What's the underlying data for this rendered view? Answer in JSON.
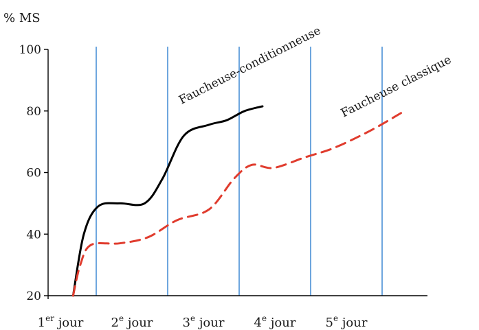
{
  "chart_data": {
    "type": "line",
    "ylabel": "% MS",
    "ylim": [
      20,
      100
    ],
    "yticks": [
      20,
      40,
      60,
      80,
      100
    ],
    "day_dividers": [
      1,
      2,
      3,
      4,
      5
    ],
    "categories": [
      {
        "num": "1",
        "sup": "er",
        "word": "jour"
      },
      {
        "num": "2",
        "sup": "e",
        "word": "jour"
      },
      {
        "num": "3",
        "sup": "e",
        "word": "jour"
      },
      {
        "num": "4",
        "sup": "e",
        "word": "jour"
      },
      {
        "num": "5",
        "sup": "e",
        "word": "jour"
      }
    ],
    "grid": "vertical lines at each day",
    "series": [
      {
        "name": "Faucheuse-conditionneuse",
        "color": "#000000",
        "dash": "solid",
        "points": [
          [
            0.35,
            20
          ],
          [
            0.5,
            40
          ],
          [
            0.7,
            49
          ],
          [
            1.0,
            50
          ],
          [
            1.35,
            50
          ],
          [
            1.6,
            58
          ],
          [
            1.9,
            72
          ],
          [
            2.25,
            75.5
          ],
          [
            2.5,
            77
          ],
          [
            2.75,
            80
          ],
          [
            3.0,
            81.5
          ]
        ]
      },
      {
        "name": "Faucheuse classique",
        "color": "#e03c2e",
        "dash": "dashed",
        "points": [
          [
            0.35,
            20
          ],
          [
            0.45,
            30
          ],
          [
            0.6,
            36.5
          ],
          [
            1.0,
            37
          ],
          [
            1.4,
            39
          ],
          [
            1.8,
            44.5
          ],
          [
            2.25,
            48
          ],
          [
            2.6,
            58
          ],
          [
            2.85,
            62.5
          ],
          [
            3.15,
            61.5
          ],
          [
            3.6,
            65
          ],
          [
            4.0,
            68
          ],
          [
            4.5,
            73.5
          ],
          [
            4.95,
            79.5
          ]
        ]
      }
    ]
  }
}
